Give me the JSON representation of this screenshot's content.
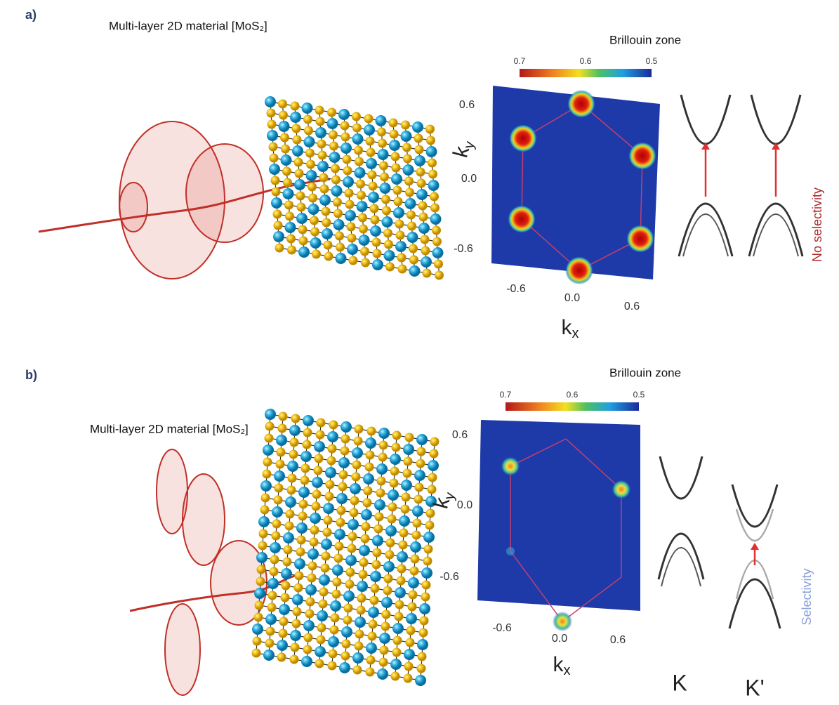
{
  "panels": [
    {
      "label": "a)",
      "material": "Multi-layer 2D material [MoS₂]",
      "zone_title": "Brillouin zone",
      "colorbar_ticks": [
        "0.7",
        "0.6",
        "0.5"
      ],
      "y_ticks": [
        "0.6",
        "0.0",
        "-0.6"
      ],
      "x_ticks": [
        "-0.6",
        "0.0",
        "0.6"
      ],
      "y_axis": {
        "symbol": "k",
        "subscript": "y"
      },
      "x_axis": {
        "symbol": "k",
        "subscript": "x"
      },
      "annotation": "No selectivity"
    },
    {
      "label": "b)",
      "material": "Multi-layer 2D material [MoS₂]",
      "zone_title": "Brillouin zone",
      "colorbar_ticks": [
        "0.7",
        "0.6",
        "0.5"
      ],
      "y_ticks": [
        "0.6",
        "0.0",
        "-0.6"
      ],
      "x_ticks": [
        "-0.6",
        "0.0",
        "0.6"
      ],
      "y_axis": {
        "symbol": "k",
        "subscript": "y"
      },
      "x_axis": {
        "symbol": "k",
        "subscript": "x"
      },
      "annotation": "Selectivity",
      "valley_labels": [
        "K",
        "K'"
      ]
    }
  ]
}
